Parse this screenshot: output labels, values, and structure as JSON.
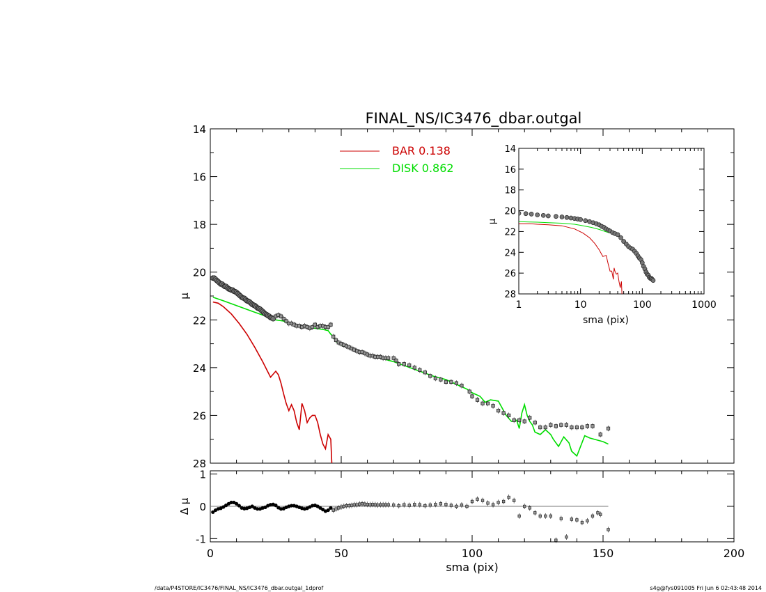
{
  "footer": {
    "left": "/data/P4STORE/IC3476/FINAL_NS/IC3476_dbar.outgal_1dprof",
    "right": "s4g@fys091005  Fri Jun  6 02:43:48 2014"
  },
  "colors": {
    "bar": "#cc0000",
    "disk": "#00dd00",
    "data": "#000000"
  },
  "chart_data": [
    {
      "id": "main",
      "type": "line",
      "title": "FINAL_NS/IC3476_dbar.outgal",
      "xlabel": "",
      "ylabel": "μ",
      "xlim": [
        0,
        200
      ],
      "ylim": [
        28,
        14
      ],
      "y_reversed": true,
      "yticks": [
        14,
        16,
        18,
        20,
        22,
        24,
        26,
        28
      ],
      "xticks": [
        0,
        50,
        100,
        150,
        200
      ],
      "legend_position": "top-center",
      "legend": [
        {
          "name": "BAR",
          "value": "0.138",
          "color": "#cc0000"
        },
        {
          "name": "DISK",
          "value": "0.862",
          "color": "#00dd00"
        }
      ],
      "series": [
        {
          "name": "BAR",
          "role": "model",
          "color": "#cc0000",
          "x": [
            1,
            3,
            5,
            8,
            11,
            14,
            17,
            20,
            23,
            25,
            26,
            27,
            28,
            29,
            30,
            31,
            32,
            33,
            34,
            35,
            36,
            37,
            38,
            39,
            40,
            41,
            42,
            43,
            44,
            45,
            46,
            46.5
          ],
          "y": [
            21.25,
            21.3,
            21.45,
            21.75,
            22.15,
            22.6,
            23.15,
            23.75,
            24.4,
            24.15,
            24.3,
            24.65,
            25.1,
            25.5,
            25.8,
            25.55,
            25.8,
            26.3,
            26.6,
            25.5,
            25.8,
            26.3,
            26.1,
            26.0,
            26.0,
            26.3,
            26.8,
            27.2,
            27.4,
            26.8,
            27.0,
            28.2
          ]
        },
        {
          "name": "DISK",
          "role": "model",
          "color": "#00dd00",
          "x": [
            1,
            5,
            10,
            15,
            20,
            25,
            28,
            30,
            33,
            36,
            40,
            43,
            45,
            46,
            47,
            48,
            50,
            55,
            60,
            65,
            70,
            75,
            80,
            85,
            90,
            95,
            98,
            100,
            103,
            105,
            107,
            110,
            113,
            115,
            117,
            118,
            119,
            120,
            121,
            122,
            123,
            124,
            126,
            128,
            130,
            131,
            133,
            135,
            137,
            138,
            140,
            143,
            145,
            150,
            152
          ],
          "y": [
            21.05,
            21.2,
            21.4,
            21.6,
            21.8,
            22.0,
            22.05,
            22.15,
            22.25,
            22.3,
            22.35,
            22.4,
            22.45,
            22.6,
            22.7,
            22.9,
            23.05,
            23.25,
            23.45,
            23.6,
            23.75,
            23.95,
            24.15,
            24.35,
            24.5,
            24.75,
            24.9,
            25.05,
            25.2,
            25.45,
            25.35,
            25.4,
            26.0,
            26.25,
            26.2,
            26.55,
            25.9,
            25.55,
            26.0,
            26.25,
            26.4,
            26.7,
            26.8,
            26.6,
            26.8,
            27.0,
            27.3,
            26.9,
            27.15,
            27.5,
            27.7,
            26.85,
            26.95,
            27.1,
            27.2
          ]
        },
        {
          "name": "",
          "role": "data-dense",
          "x": [
            1,
            1.5,
            2,
            2.5,
            3,
            3.5,
            4,
            4.5,
            5,
            5.5,
            6,
            6.5,
            7,
            7.5,
            8,
            8.5,
            9,
            9.5,
            10,
            10.5,
            11,
            11.5,
            12,
            12.5,
            13,
            13.5,
            14,
            14.5,
            15,
            15.5,
            16,
            16.5,
            17,
            17.5,
            18,
            18.5,
            19,
            19.5,
            20,
            20.5,
            21,
            21.5,
            22,
            22.5,
            23,
            23.5,
            24
          ],
          "y": [
            20.25,
            20.25,
            20.3,
            20.35,
            20.4,
            20.45,
            20.5,
            20.5,
            20.55,
            20.6,
            20.6,
            20.65,
            20.7,
            20.72,
            20.75,
            20.75,
            20.8,
            20.82,
            20.85,
            20.9,
            20.95,
            21.0,
            21.05,
            21.08,
            21.1,
            21.15,
            21.2,
            21.22,
            21.25,
            21.3,
            21.35,
            21.38,
            21.4,
            21.45,
            21.5,
            21.52,
            21.55,
            21.6,
            21.65,
            21.7,
            21.75,
            21.78,
            21.82,
            21.85,
            21.9,
            21.92,
            21.95
          ]
        },
        {
          "name": "",
          "role": "data-points",
          "x": [
            25,
            26,
            27,
            28,
            29,
            30,
            31,
            32,
            33,
            34,
            35,
            36,
            37,
            38,
            39,
            40,
            41,
            42,
            43,
            44,
            45,
            46,
            47,
            48,
            49,
            50,
            51,
            52,
            53,
            54,
            55,
            56,
            57,
            58,
            59,
            60,
            61,
            62,
            63,
            64,
            65,
            66,
            67,
            68,
            70,
            71,
            72,
            74,
            76,
            78,
            80,
            82,
            84,
            86,
            88,
            90,
            92,
            94,
            96,
            99,
            100,
            102,
            104,
            106,
            108,
            110,
            112,
            114,
            116,
            118,
            120,
            122,
            124,
            126,
            128,
            130,
            132,
            134,
            136,
            138,
            140,
            142,
            144,
            146,
            149,
            152
          ],
          "y": [
            21.85,
            21.8,
            21.85,
            21.95,
            22.05,
            22.15,
            22.15,
            22.2,
            22.25,
            22.25,
            22.3,
            22.25,
            22.3,
            22.35,
            22.3,
            22.2,
            22.3,
            22.25,
            22.25,
            22.3,
            22.3,
            22.2,
            22.7,
            22.85,
            22.95,
            23.0,
            23.05,
            23.1,
            23.15,
            23.2,
            23.25,
            23.3,
            23.35,
            23.35,
            23.4,
            23.45,
            23.5,
            23.5,
            23.55,
            23.55,
            23.55,
            23.6,
            23.6,
            23.6,
            23.6,
            23.7,
            23.85,
            23.85,
            23.9,
            24.0,
            24.1,
            24.2,
            24.35,
            24.45,
            24.5,
            24.6,
            24.6,
            24.65,
            24.75,
            25.0,
            25.2,
            25.35,
            25.5,
            25.5,
            25.6,
            25.8,
            25.9,
            26.0,
            26.2,
            26.2,
            26.25,
            26.1,
            26.3,
            26.5,
            26.5,
            26.4,
            26.45,
            26.4,
            26.4,
            26.5,
            26.5,
            26.5,
            26.45,
            26.45,
            26.8,
            26.55
          ]
        }
      ]
    },
    {
      "id": "inset",
      "type": "line",
      "title": "",
      "xlabel": "sma (pix)",
      "ylabel": "μ",
      "x_scale": "log",
      "xlim": [
        1,
        1000
      ],
      "ylim": [
        28,
        14
      ],
      "y_reversed": true,
      "xtick_labels": [
        "1",
        "10",
        "100",
        "1000"
      ],
      "yticks": [
        14,
        16,
        18,
        20,
        22,
        24,
        26,
        28
      ],
      "series": [
        {
          "name": "BAR",
          "role": "model",
          "color": "#cc0000",
          "x": [
            1,
            1.5,
            2,
            3,
            5,
            8,
            11,
            14,
            17,
            20,
            23,
            26,
            28,
            30,
            32,
            34,
            35,
            36,
            38,
            40,
            42,
            44,
            46,
            47
          ],
          "y": [
            21.25,
            21.25,
            21.3,
            21.35,
            21.45,
            21.75,
            22.15,
            22.6,
            23.15,
            23.75,
            24.4,
            24.3,
            25.1,
            25.8,
            25.8,
            26.6,
            25.5,
            25.8,
            26.1,
            26.0,
            26.8,
            27.4,
            26.8,
            28.2
          ]
        },
        {
          "name": "DISK",
          "role": "model",
          "color": "#00dd00",
          "x": [
            1,
            1.5,
            2,
            3,
            5,
            8,
            10,
            15,
            20,
            25,
            30
          ],
          "y": [
            21.05,
            21.08,
            21.1,
            21.15,
            21.2,
            21.3,
            21.4,
            21.6,
            21.8,
            22.0,
            22.15
          ]
        },
        {
          "name": "",
          "role": "data",
          "x": [
            1,
            1.3,
            1.6,
            2,
            2.5,
            3,
            4,
            5,
            6,
            7,
            8,
            9,
            10,
            12,
            14,
            16,
            18,
            20,
            22,
            24,
            26,
            28,
            30,
            33,
            36,
            40,
            45,
            50,
            55,
            60,
            65,
            70,
            75,
            80,
            85,
            90,
            95,
            100,
            105,
            110,
            115,
            120,
            125,
            130,
            135,
            140,
            145,
            150
          ],
          "y": [
            20.25,
            20.28,
            20.32,
            20.4,
            20.45,
            20.5,
            20.55,
            20.6,
            20.65,
            20.7,
            20.75,
            20.8,
            20.85,
            20.95,
            21.05,
            21.15,
            21.25,
            21.35,
            21.5,
            21.6,
            21.75,
            21.85,
            21.95,
            22.1,
            22.2,
            22.3,
            22.6,
            22.95,
            23.2,
            23.45,
            23.6,
            23.7,
            23.9,
            24.1,
            24.35,
            24.55,
            24.7,
            25.0,
            25.35,
            25.6,
            25.9,
            26.1,
            26.2,
            26.4,
            26.5,
            26.5,
            26.6,
            26.7
          ]
        }
      ]
    },
    {
      "id": "residual",
      "type": "scatter",
      "title": "",
      "xlabel": "sma (pix)",
      "ylabel": "Δ μ",
      "xlim": [
        0,
        200
      ],
      "ylim": [
        -1.1,
        1.1
      ],
      "yticks": [
        -1,
        0,
        1
      ],
      "xticks": [
        0,
        50,
        100,
        150,
        200
      ],
      "zero_line": [
        0,
        152
      ],
      "series": [
        {
          "name": "",
          "role": "dense",
          "x": [
            1,
            2,
            3,
            4,
            5,
            6,
            7,
            8,
            9,
            10,
            11,
            12,
            13,
            14,
            15,
            16,
            17,
            18,
            19,
            20,
            21,
            22,
            23,
            24,
            25,
            26,
            27,
            28,
            29,
            30,
            31,
            32,
            33,
            34,
            35,
            36,
            37,
            38,
            39,
            40,
            41,
            42,
            43,
            44,
            45,
            46
          ],
          "y": [
            -0.18,
            -0.12,
            -0.08,
            -0.06,
            -0.02,
            0.03,
            0.08,
            0.12,
            0.12,
            0.08,
            0.02,
            -0.05,
            -0.07,
            -0.06,
            -0.03,
            0.0,
            -0.05,
            -0.08,
            -0.08,
            -0.05,
            -0.03,
            0.02,
            0.05,
            0.06,
            0.03,
            -0.04,
            -0.08,
            -0.07,
            -0.03,
            0.0,
            0.02,
            0.02,
            0.0,
            -0.03,
            -0.06,
            -0.08,
            -0.06,
            -0.02,
            0.02,
            0.03,
            0.0,
            -0.05,
            -0.1,
            -0.15,
            -0.12,
            -0.05
          ]
        },
        {
          "name": "",
          "role": "points",
          "x": [
            47,
            48,
            49,
            50,
            51,
            52,
            53,
            54,
            55,
            56,
            57,
            58,
            59,
            60,
            61,
            62,
            63,
            64,
            65,
            66,
            67,
            68,
            70,
            72,
            74,
            76,
            78,
            80,
            82,
            84,
            86,
            88,
            90,
            92,
            94,
            96,
            98,
            100,
            102,
            104,
            106,
            108,
            110,
            112,
            114,
            116,
            118,
            120,
            122,
            124,
            126,
            128,
            130,
            132,
            134,
            136,
            138,
            140,
            142,
            144,
            146,
            148,
            149,
            152
          ],
          "y": [
            -0.12,
            -0.08,
            -0.05,
            -0.02,
            0.0,
            0.02,
            0.02,
            0.03,
            0.05,
            0.05,
            0.07,
            0.08,
            0.07,
            0.06,
            0.05,
            0.06,
            0.05,
            0.04,
            0.05,
            0.05,
            0.05,
            0.05,
            0.04,
            0.02,
            0.05,
            0.03,
            0.06,
            0.05,
            0.02,
            0.04,
            0.06,
            0.08,
            0.06,
            0.03,
            0.0,
            0.04,
            0.0,
            0.15,
            0.22,
            0.18,
            0.1,
            0.05,
            0.12,
            0.15,
            0.28,
            0.18,
            -0.3,
            0.0,
            -0.05,
            -0.2,
            -0.3,
            -0.3,
            -0.3,
            -1.05,
            -0.38,
            -0.95,
            -0.4,
            -0.42,
            -0.5,
            -0.45,
            -0.3,
            -0.2,
            -0.25,
            -0.72
          ]
        }
      ]
    }
  ]
}
